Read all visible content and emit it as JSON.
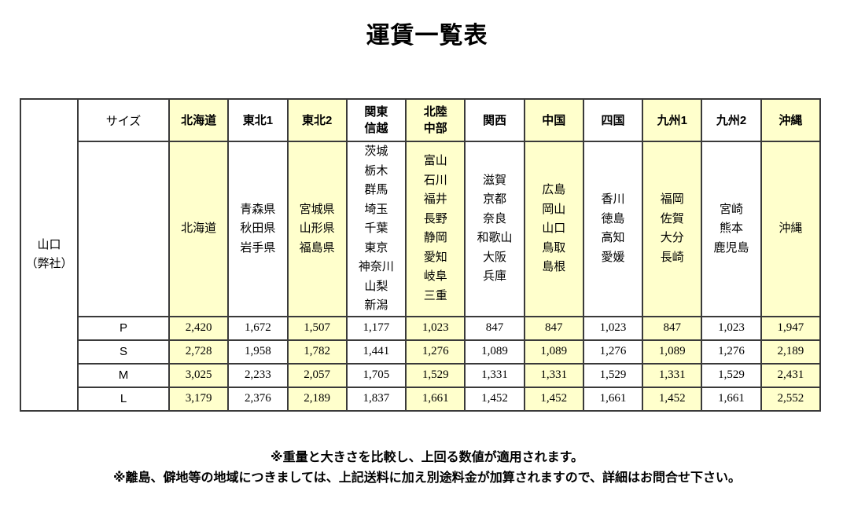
{
  "title": "運賃一覧表",
  "origin": {
    "label": "山口\n（弊社）"
  },
  "table": {
    "size_header": "サイズ",
    "regions": [
      {
        "label": "北海道",
        "prefectures": "北海道"
      },
      {
        "label": "東北1",
        "prefectures": "青森県\n秋田県\n岩手県"
      },
      {
        "label": "東北2",
        "prefectures": "宮城県\n山形県\n福島県"
      },
      {
        "label": "関東\n信越",
        "prefectures": "茨城\n栃木\n群馬\n埼玉\n千葉\n東京\n神奈川\n山梨\n新潟"
      },
      {
        "label": "北陸\n中部",
        "prefectures": "富山\n石川\n福井\n長野\n静岡\n愛知\n岐阜\n三重"
      },
      {
        "label": "関西",
        "prefectures": "滋賀\n京都\n奈良\n和歌山\n大阪\n兵庫"
      },
      {
        "label": "中国",
        "prefectures": "広島\n岡山\n山口\n鳥取\n島根"
      },
      {
        "label": "四国",
        "prefectures": "香川\n徳島\n高知\n愛媛"
      },
      {
        "label": "九州1",
        "prefectures": "福岡\n佐賀\n大分\n長崎"
      },
      {
        "label": "九州2",
        "prefectures": "宮崎\n熊本\n鹿児島"
      },
      {
        "label": "沖縄",
        "prefectures": "沖縄"
      }
    ],
    "rows": [
      {
        "size": "P",
        "values": [
          "2,420",
          "1,672",
          "1,507",
          "1,177",
          "1,023",
          "847",
          "847",
          "1,023",
          "847",
          "1,023",
          "1,947"
        ]
      },
      {
        "size": "S",
        "values": [
          "2,728",
          "1,958",
          "1,782",
          "1,441",
          "1,276",
          "1,089",
          "1,089",
          "1,276",
          "1,089",
          "1,276",
          "2,189"
        ]
      },
      {
        "size": "M",
        "values": [
          "3,025",
          "2,233",
          "2,057",
          "1,705",
          "1,529",
          "1,331",
          "1,331",
          "1,529",
          "1,331",
          "1,529",
          "2,431"
        ]
      },
      {
        "size": "L",
        "values": [
          "3,179",
          "2,376",
          "2,189",
          "1,837",
          "1,661",
          "1,452",
          "1,452",
          "1,661",
          "1,452",
          "1,661",
          "2,552"
        ]
      }
    ]
  },
  "notes": [
    "※重量と大きさを比較し、上回る数値が適用されます。",
    "※離島、僻地等の地域につきましては、上記送料に加え別途料金が加算されますので、詳細はお問合せ下さい。"
  ],
  "colors": {
    "origin_bg": "#d3f649",
    "highlight_bg": "#ffffcc",
    "border": "#3a3a3a"
  }
}
